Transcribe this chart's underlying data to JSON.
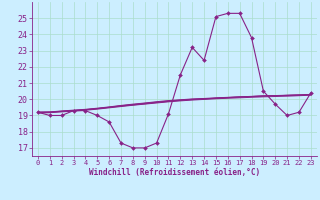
{
  "xlabel": "Windchill (Refroidissement éolien,°C)",
  "background_color": "#cceeff",
  "grid_color": "#aaddcc",
  "line_color": "#882288",
  "hours": [
    0,
    1,
    2,
    3,
    4,
    5,
    6,
    7,
    8,
    9,
    10,
    11,
    12,
    13,
    14,
    15,
    16,
    17,
    18,
    19,
    20,
    21,
    22,
    23
  ],
  "main_curve": [
    19.2,
    19.0,
    19.0,
    19.3,
    19.3,
    19.0,
    18.6,
    17.3,
    17.0,
    17.0,
    17.3,
    19.1,
    21.5,
    23.2,
    22.4,
    25.1,
    25.3,
    25.3,
    23.8,
    20.5,
    19.7,
    19.0,
    19.2,
    20.4
  ],
  "flat_line1": [
    19.2,
    19.2,
    19.25,
    19.3,
    19.35,
    19.42,
    19.5,
    19.58,
    19.65,
    19.72,
    19.8,
    19.87,
    19.93,
    19.98,
    20.02,
    20.06,
    20.1,
    20.14,
    20.17,
    20.2,
    20.22,
    20.24,
    20.26,
    20.28
  ],
  "flat_line2": [
    19.2,
    19.22,
    19.28,
    19.33,
    19.38,
    19.45,
    19.53,
    19.62,
    19.7,
    19.77,
    19.85,
    19.92,
    19.97,
    20.02,
    20.05,
    20.09,
    20.12,
    20.15,
    20.18,
    20.21,
    20.23,
    20.25,
    20.27,
    20.3
  ],
  "flat_line3": [
    19.2,
    19.21,
    19.26,
    19.31,
    19.36,
    19.43,
    19.51,
    19.6,
    19.67,
    19.75,
    19.82,
    19.89,
    19.95,
    20.0,
    20.03,
    20.07,
    20.11,
    20.14,
    20.17,
    20.2,
    20.22,
    20.24,
    20.26,
    20.29
  ],
  "flat_line4": [
    19.15,
    19.17,
    19.22,
    19.27,
    19.32,
    19.39,
    19.47,
    19.55,
    19.63,
    19.7,
    19.77,
    19.84,
    19.9,
    19.95,
    19.99,
    20.03,
    20.06,
    20.09,
    20.12,
    20.15,
    20.17,
    20.19,
    20.22,
    20.25
  ],
  "ylim": [
    16.5,
    26
  ],
  "yticks": [
    17,
    18,
    19,
    20,
    21,
    22,
    23,
    24,
    25
  ],
  "xlim": [
    -0.5,
    23.5
  ],
  "xticks": [
    0,
    1,
    2,
    3,
    4,
    5,
    6,
    7,
    8,
    9,
    10,
    11,
    12,
    13,
    14,
    15,
    16,
    17,
    18,
    19,
    20,
    21,
    22,
    23
  ]
}
